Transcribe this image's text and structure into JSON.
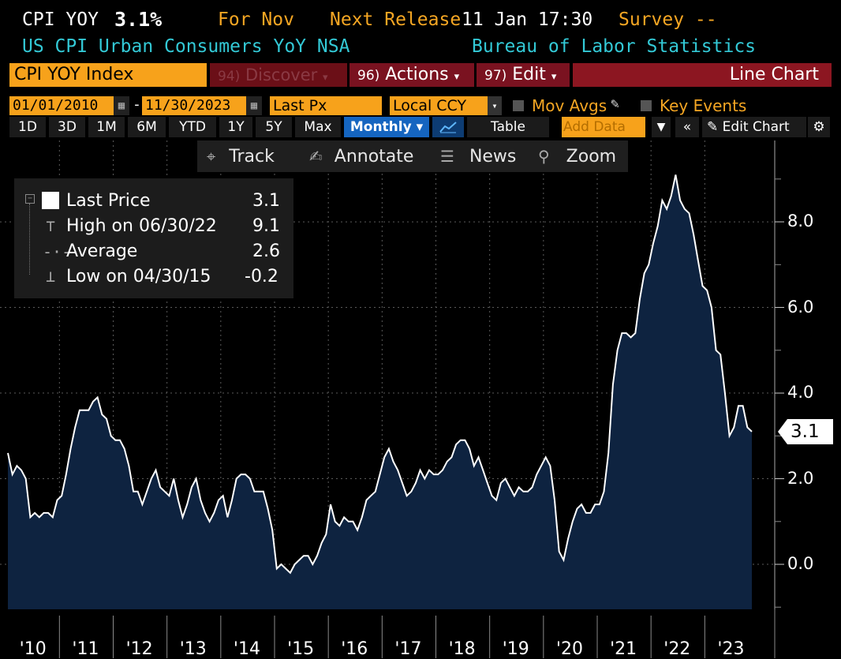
{
  "header": {
    "ticker": "CPI YOY",
    "value": "3.1%",
    "for_label": "For Nov",
    "next_release_label": "Next Release",
    "next_release_value": "11 Jan 17:30",
    "survey_label": "Survey --",
    "description": "US CPI Urban Consumers YoY NSA",
    "source": "Bureau of Labor Statistics"
  },
  "commandbar": {
    "security": "CPI YOY Index",
    "discover_num": "94)",
    "discover": "Discover",
    "actions_num": "96)",
    "actions": "Actions",
    "edit_num": "97)",
    "edit": "Edit",
    "chart_type": "Line Chart"
  },
  "settings": {
    "start_date": "01/01/2010",
    "end_date": "11/30/2023",
    "date_sep": "-",
    "field": "Last Px",
    "currency": "Local CCY",
    "mov_avgs": "Mov Avgs",
    "key_events": "Key Events"
  },
  "toolbar": {
    "ranges": [
      "1D",
      "3D",
      "1M",
      "6M",
      "YTD",
      "1Y",
      "5Y",
      "Max"
    ],
    "frequency": "Monthly ▾",
    "table": "Table",
    "add_data": "Add Data",
    "edit_chart": "Edit Chart"
  },
  "floatbar": {
    "track": "Track",
    "annotate": "Annotate",
    "news": "News",
    "zoom": "Zoom"
  },
  "legend": {
    "last_label": "Last Price",
    "last_value": "3.1",
    "high_label": "High on 06/30/22",
    "high_value": "9.1",
    "avg_label": "Average",
    "avg_value": "2.6",
    "low_label": "Low on 04/30/15",
    "low_value": "-0.2"
  },
  "last_tag": "3.1",
  "colors": {
    "orange": "#f5a623",
    "cyan": "#33c9d6",
    "fill": "#0e2340",
    "line": "#ffffff",
    "brand_red": "#8c1621"
  },
  "chart_data": {
    "type": "area",
    "title": "CPI YOY Index",
    "xlabel": "",
    "ylabel": "",
    "ylim": [
      -1.05,
      9.9
    ],
    "yticks": [
      "0.0",
      "2.0",
      "4.0",
      "6.0",
      "8.0"
    ],
    "ytick_values": [
      0,
      2,
      4,
      6,
      8
    ],
    "xtick_labels": [
      "'10",
      "'11",
      "'12",
      "'13",
      "'14",
      "'15",
      "'16",
      "'17",
      "'18",
      "'19",
      "'20",
      "'21",
      "'22",
      "'23"
    ],
    "start": "2010-01",
    "end": "2023-11",
    "frequency": "monthly",
    "values": [
      2.6,
      2.1,
      2.3,
      2.2,
      2.0,
      1.1,
      1.2,
      1.1,
      1.2,
      1.2,
      1.1,
      1.5,
      1.6,
      2.1,
      2.7,
      3.2,
      3.6,
      3.6,
      3.6,
      3.8,
      3.9,
      3.5,
      3.4,
      3.0,
      2.9,
      2.9,
      2.7,
      2.3,
      1.7,
      1.7,
      1.4,
      1.7,
      2.0,
      2.2,
      1.8,
      1.7,
      1.6,
      2.0,
      1.5,
      1.1,
      1.4,
      1.8,
      2.0,
      1.5,
      1.2,
      1.0,
      1.2,
      1.5,
      1.6,
      1.1,
      1.5,
      2.0,
      2.1,
      2.1,
      2.0,
      1.7,
      1.7,
      1.7,
      1.3,
      0.8,
      -0.1,
      0.0,
      -0.1,
      -0.2,
      0.0,
      0.1,
      0.2,
      0.2,
      0.0,
      0.2,
      0.5,
      0.7,
      1.4,
      1.0,
      0.9,
      1.1,
      1.0,
      1.0,
      0.8,
      1.1,
      1.5,
      1.6,
      1.7,
      2.1,
      2.5,
      2.7,
      2.4,
      2.2,
      1.9,
      1.6,
      1.7,
      1.9,
      2.2,
      2.0,
      2.2,
      2.1,
      2.1,
      2.2,
      2.4,
      2.5,
      2.8,
      2.9,
      2.9,
      2.7,
      2.3,
      2.5,
      2.2,
      1.9,
      1.6,
      1.5,
      1.9,
      2.0,
      1.8,
      1.6,
      1.8,
      1.7,
      1.7,
      1.8,
      2.1,
      2.3,
      2.5,
      2.3,
      1.5,
      0.3,
      0.1,
      0.6,
      1.0,
      1.3,
      1.4,
      1.2,
      1.2,
      1.4,
      1.4,
      1.7,
      2.6,
      4.2,
      5.0,
      5.4,
      5.4,
      5.3,
      5.4,
      6.2,
      6.8,
      7.0,
      7.5,
      7.9,
      8.5,
      8.3,
      8.6,
      9.1,
      8.5,
      8.3,
      8.2,
      7.7,
      7.1,
      6.5,
      6.4,
      6.0,
      5.0,
      4.9,
      4.0,
      3.0,
      3.2,
      3.7,
      3.7,
      3.2,
      3.1
    ]
  }
}
